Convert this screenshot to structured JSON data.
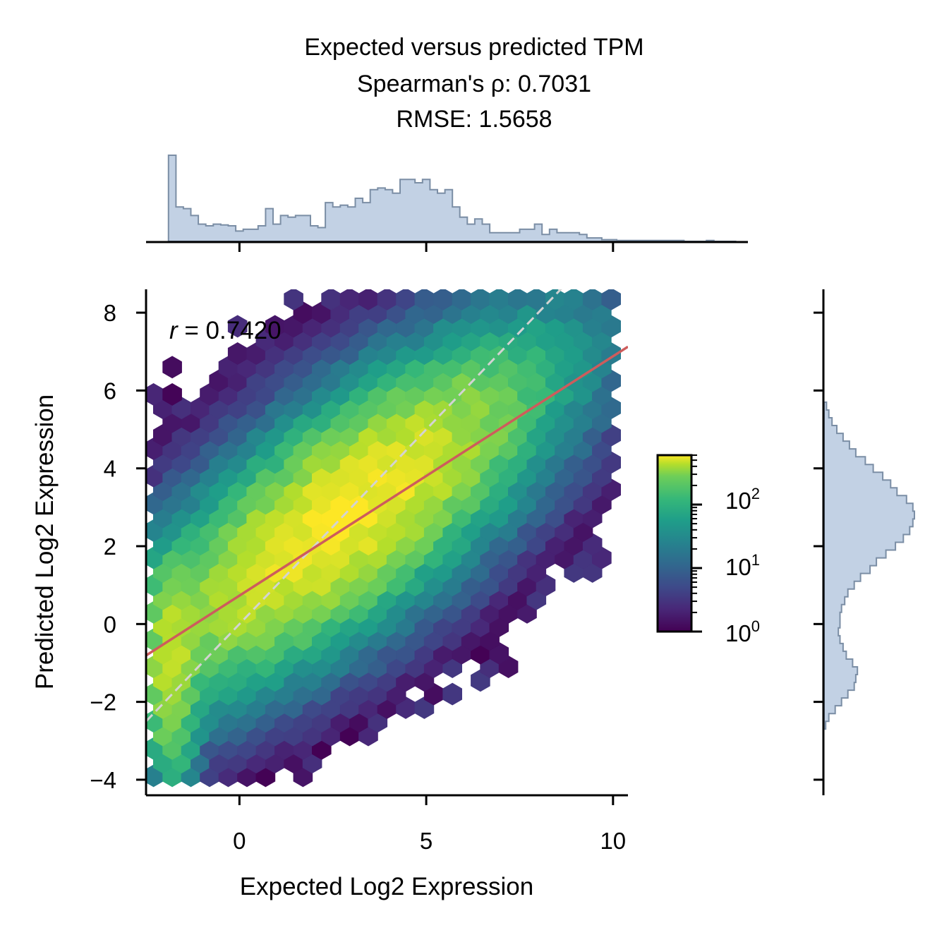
{
  "chart_data": {
    "type": "scatter",
    "plot_kind": "hexbin joint plot with marginal histograms",
    "title": [
      "Expected versus predicted TPM",
      "Spearman's ρ: 0.7031",
      "RMSE: 1.5658"
    ],
    "xlabel": "Expected Log2 Expression",
    "ylabel": "Predicted Log2 Expression",
    "xlim": [
      -2.5,
      10.4
    ],
    "ylim": [
      -4.4,
      8.6
    ],
    "xticks": [
      0,
      5,
      10
    ],
    "xtick_labels": [
      "0",
      "5",
      "10"
    ],
    "yticks": [
      -4,
      -2,
      0,
      2,
      4,
      6,
      8
    ],
    "ytick_labels": [
      "−4",
      "−2",
      "0",
      "2",
      "4",
      "6",
      "8"
    ],
    "annotation": "r = 0.7420",
    "annotation_symbol": "r",
    "annotation_value": " = 0.7420",
    "regression_line": {
      "color": "#cd5c5c",
      "slope": 0.615,
      "intercept": 0.73
    },
    "identity_line": {
      "color": "#d3d3d3",
      "style": "dashed",
      "slope": 1,
      "intercept": 0
    },
    "colorbar": {
      "scale": "log",
      "colormap": "viridis",
      "range": [
        1,
        600
      ],
      "tick_labels": [
        {
          "base": "10",
          "exp": "0"
        },
        {
          "base": "10",
          "exp": "1"
        },
        {
          "base": "10",
          "exp": "2"
        }
      ]
    },
    "hexbin": {
      "gridsize_x": 0.5,
      "gridsize_y": 0.35,
      "note": "count field approximates a positively correlated cloud; max count ~600"
    },
    "marginal_x": {
      "color_fill": "#c2d1e4",
      "color_edge": "#7b8ea5",
      "bin_start": -1.9,
      "bin_width": 0.2,
      "heights": [
        100,
        40,
        38,
        30,
        20,
        18,
        20,
        19,
        18,
        12,
        14,
        14,
        18,
        38,
        20,
        30,
        28,
        30,
        30,
        18,
        16,
        45,
        40,
        42,
        40,
        50,
        45,
        60,
        62,
        60,
        56,
        72,
        72,
        68,
        72,
        60,
        56,
        60,
        40,
        28,
        20,
        26,
        20,
        10,
        10,
        10,
        10,
        14,
        14,
        20,
        8,
        14,
        10,
        10,
        10,
        8,
        4,
        4,
        2,
        2,
        1,
        1,
        1,
        1,
        1,
        1,
        1,
        1,
        1,
        0,
        0,
        0,
        1,
        0,
        0,
        0
      ]
    },
    "marginal_y": {
      "color_fill": "#c2d1e4",
      "color_edge": "#7b8ea5",
      "bin_start": -2.7,
      "bin_width": 0.2,
      "heights": [
        2,
        6,
        14,
        22,
        30,
        38,
        40,
        42,
        36,
        28,
        24,
        20,
        18,
        20,
        20,
        22,
        26,
        30,
        38,
        46,
        58,
        66,
        78,
        90,
        100,
        108,
        112,
        114,
        112,
        104,
        92,
        84,
        74,
        62,
        52,
        40,
        32,
        24,
        16,
        10,
        6,
        3
      ]
    }
  }
}
